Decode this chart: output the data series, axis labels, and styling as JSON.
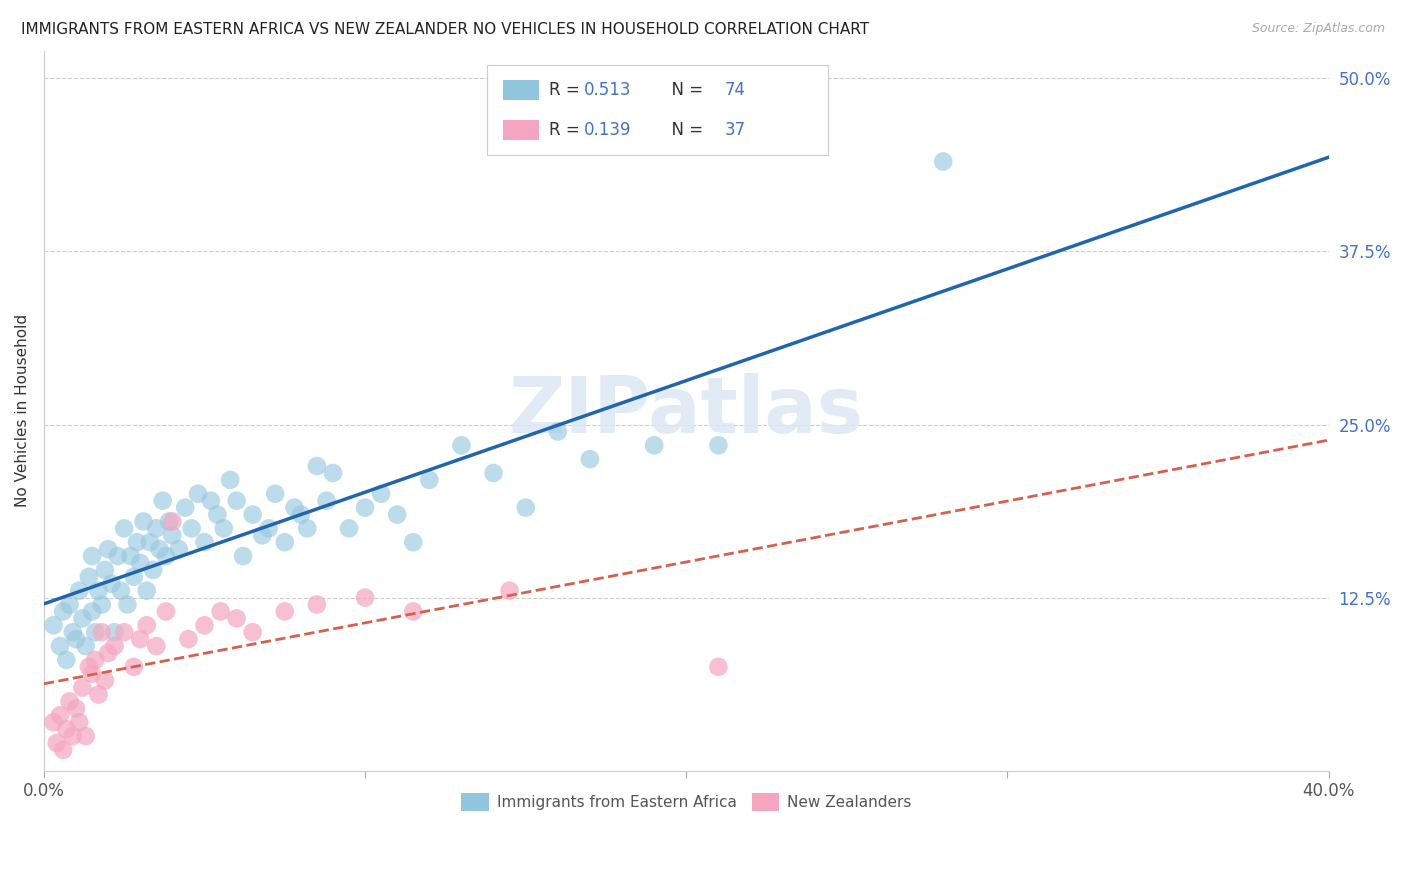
{
  "title": "IMMIGRANTS FROM EASTERN AFRICA VS NEW ZEALANDER NO VEHICLES IN HOUSEHOLD CORRELATION CHART",
  "source": "Source: ZipAtlas.com",
  "ylabel": "No Vehicles in Household",
  "ytick_values": [
    0.125,
    0.25,
    0.375,
    0.5
  ],
  "ytick_labels": [
    "12.5%",
    "25.0%",
    "37.5%",
    "50.0%"
  ],
  "xlim": [
    0.0,
    0.4
  ],
  "ylim": [
    0.0,
    0.52
  ],
  "legend_blue_r": "0.513",
  "legend_blue_n": "74",
  "legend_pink_r": "0.139",
  "legend_pink_n": "37",
  "legend_blue_label": "Immigrants from Eastern Africa",
  "legend_pink_label": "New Zealanders",
  "blue_color": "#92c5de",
  "pink_color": "#f4a6c0",
  "blue_line_color": "#2166ac",
  "pink_line_color": "#d6604d",
  "watermark": "ZIPatlas",
  "blue_scatter_x": [
    0.003,
    0.005,
    0.006,
    0.007,
    0.008,
    0.009,
    0.01,
    0.011,
    0.012,
    0.013,
    0.014,
    0.015,
    0.015,
    0.016,
    0.017,
    0.018,
    0.019,
    0.02,
    0.021,
    0.022,
    0.023,
    0.024,
    0.025,
    0.026,
    0.027,
    0.028,
    0.029,
    0.03,
    0.031,
    0.032,
    0.033,
    0.034,
    0.035,
    0.036,
    0.037,
    0.038,
    0.039,
    0.04,
    0.042,
    0.044,
    0.046,
    0.048,
    0.05,
    0.052,
    0.054,
    0.056,
    0.058,
    0.06,
    0.062,
    0.065,
    0.068,
    0.07,
    0.072,
    0.075,
    0.078,
    0.08,
    0.082,
    0.085,
    0.088,
    0.09,
    0.095,
    0.1,
    0.105,
    0.11,
    0.115,
    0.12,
    0.13,
    0.14,
    0.15,
    0.16,
    0.17,
    0.19,
    0.21,
    0.28
  ],
  "blue_scatter_y": [
    0.105,
    0.09,
    0.115,
    0.08,
    0.12,
    0.1,
    0.095,
    0.13,
    0.11,
    0.09,
    0.14,
    0.115,
    0.155,
    0.1,
    0.13,
    0.12,
    0.145,
    0.16,
    0.135,
    0.1,
    0.155,
    0.13,
    0.175,
    0.12,
    0.155,
    0.14,
    0.165,
    0.15,
    0.18,
    0.13,
    0.165,
    0.145,
    0.175,
    0.16,
    0.195,
    0.155,
    0.18,
    0.17,
    0.16,
    0.19,
    0.175,
    0.2,
    0.165,
    0.195,
    0.185,
    0.175,
    0.21,
    0.195,
    0.155,
    0.185,
    0.17,
    0.175,
    0.2,
    0.165,
    0.19,
    0.185,
    0.175,
    0.22,
    0.195,
    0.215,
    0.175,
    0.19,
    0.2,
    0.185,
    0.165,
    0.21,
    0.235,
    0.215,
    0.19,
    0.245,
    0.225,
    0.235,
    0.235,
    0.44
  ],
  "pink_scatter_x": [
    0.003,
    0.004,
    0.005,
    0.006,
    0.007,
    0.008,
    0.009,
    0.01,
    0.011,
    0.012,
    0.013,
    0.014,
    0.015,
    0.016,
    0.017,
    0.018,
    0.019,
    0.02,
    0.022,
    0.025,
    0.028,
    0.03,
    0.032,
    0.035,
    0.038,
    0.04,
    0.045,
    0.05,
    0.055,
    0.06,
    0.065,
    0.075,
    0.085,
    0.1,
    0.115,
    0.145,
    0.21
  ],
  "pink_scatter_y": [
    0.035,
    0.02,
    0.04,
    0.015,
    0.03,
    0.05,
    0.025,
    0.045,
    0.035,
    0.06,
    0.025,
    0.075,
    0.07,
    0.08,
    0.055,
    0.1,
    0.065,
    0.085,
    0.09,
    0.1,
    0.075,
    0.095,
    0.105,
    0.09,
    0.115,
    0.18,
    0.095,
    0.105,
    0.115,
    0.11,
    0.1,
    0.115,
    0.12,
    0.125,
    0.115,
    0.13,
    0.075
  ]
}
